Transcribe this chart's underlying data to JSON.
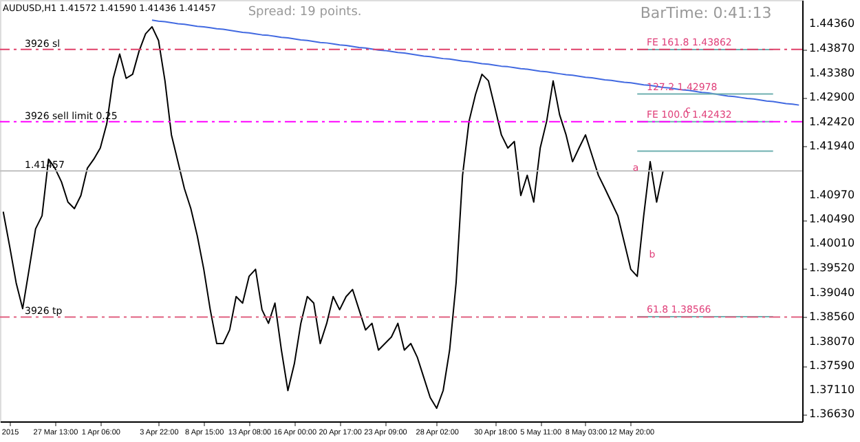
{
  "chart_data": {
    "type": "line",
    "title": "AUDUSD,H1  1.41572 1.41590 1.41436 1.41457",
    "categories": [
      null,
      "2015",
      null,
      null,
      null,
      null,
      null,
      null,
      "27 Mar 13:00",
      null,
      null,
      null,
      null,
      null,
      null,
      "1 Apr 06:00",
      null,
      null,
      null,
      null,
      null,
      null,
      null,
      null,
      "3 Apr 22:00",
      null,
      null,
      null,
      null,
      null,
      null,
      "8 Apr 15:00",
      null,
      null,
      null,
      null,
      null,
      null,
      "13 Apr 08:00",
      null,
      null,
      null,
      null,
      null,
      null,
      "16 Apr 00:00",
      null,
      null,
      null,
      null,
      null,
      null,
      "20 Apr 17:00",
      null,
      null,
      null,
      null,
      null,
      null,
      "23 Apr 09:00",
      null,
      null,
      null,
      null,
      null,
      null,
      null,
      "28 Apr 02:00",
      null,
      null,
      null,
      null,
      null,
      null,
      null,
      null,
      "30 Apr 18:00",
      null,
      null,
      null,
      null,
      null,
      null,
      "5 May 11:00",
      null,
      null,
      null,
      null,
      null,
      null,
      "8 May 03:00",
      null,
      null,
      null,
      null,
      null,
      null,
      "12 May 20:00",
      null,
      null,
      null,
      null,
      null,
      null,
      null,
      null,
      null,
      null,
      null,
      null,
      null,
      null,
      null,
      null,
      null,
      null,
      null,
      null,
      null,
      null,
      null,
      null,
      null,
      null
    ],
    "series": [
      {
        "color": "#000000",
        "values": [
          1.4065,
          1.3996,
          1.3924,
          1.3873,
          1.3951,
          1.4031,
          1.4057,
          1.4169,
          1.4151,
          1.4124,
          1.4084,
          1.4071,
          1.4097,
          1.4151,
          1.4169,
          1.4191,
          1.4239,
          1.4329,
          1.4377,
          1.4329,
          1.4337,
          1.4383,
          1.4417,
          1.4431,
          1.4404,
          1.4324,
          1.4217,
          1.4164,
          1.4111,
          1.4071,
          1.4017,
          1.3951,
          1.3871,
          1.3804,
          1.3804,
          1.3831,
          1.3897,
          1.3884,
          1.3937,
          1.3951,
          1.3871,
          1.3844,
          1.3884,
          1.3791,
          1.3711,
          1.3764,
          1.3844,
          1.3897,
          1.3884,
          1.3804,
          1.3844,
          1.3897,
          1.3871,
          1.3897,
          1.3911,
          1.3871,
          1.3831,
          1.3844,
          1.3791,
          1.3804,
          1.3817,
          1.3844,
          1.3791,
          1.3804,
          1.3777,
          1.3737,
          1.3697,
          1.3676,
          1.3711,
          1.3791,
          1.3924,
          1.4137,
          1.4244,
          1.4297,
          1.4337,
          1.4324,
          1.4271,
          1.4217,
          1.4191,
          1.4204,
          1.4097,
          1.4137,
          1.4084,
          1.4191,
          1.4244,
          1.4324,
          1.4257,
          1.4217,
          1.4164,
          1.4191,
          1.4217,
          1.4177,
          1.4137,
          1.4111,
          1.4084,
          1.4057,
          1.4004,
          1.3951,
          1.3937,
          1.4057,
          1.4164,
          1.4084,
          1.4146,
          null,
          null,
          null,
          null,
          null,
          null,
          null,
          null,
          null,
          null,
          null,
          null,
          null,
          null,
          null,
          null,
          null,
          null,
          null,
          null,
          null
        ]
      },
      {
        "type": "line",
        "color": "#4169e1",
        "values": [
          null,
          null,
          null,
          null,
          null,
          null,
          null,
          null,
          null,
          null,
          null,
          null,
          null,
          null,
          null,
          null,
          null,
          null,
          null,
          null,
          null,
          null,
          null,
          1.4444,
          1.4442,
          1.4441,
          1.4439,
          1.4437,
          1.4436,
          1.4434,
          1.4432,
          1.4431,
          1.4429,
          1.4427,
          1.4426,
          1.4424,
          1.4422,
          1.442,
          1.4419,
          1.4417,
          1.4415,
          1.4414,
          1.4412,
          1.441,
          1.4409,
          1.4407,
          1.4405,
          1.4404,
          1.4402,
          1.44,
          1.4399,
          1.4397,
          1.4395,
          1.4394,
          1.4392,
          1.439,
          1.4389,
          1.4387,
          1.4385,
          1.4384,
          1.4382,
          1.438,
          1.4379,
          1.4377,
          1.4375,
          1.4373,
          1.4372,
          1.437,
          1.4368,
          1.4367,
          1.4365,
          1.4363,
          1.4362,
          1.436,
          1.4358,
          1.4357,
          1.4355,
          1.4353,
          1.4352,
          1.435,
          1.4348,
          1.4347,
          1.4345,
          1.4343,
          1.4342,
          1.434,
          1.4338,
          1.4336,
          1.4335,
          1.4333,
          1.4331,
          1.433,
          1.4328,
          1.4326,
          1.4325,
          1.4323,
          1.4321,
          1.432,
          1.4318,
          1.4316,
          1.4315,
          1.4313,
          1.4311,
          1.431,
          1.4308,
          1.4306,
          1.4305,
          1.4303,
          1.4301,
          1.43,
          1.4298,
          1.4296,
          1.4294,
          1.4293,
          1.4291,
          1.4289,
          1.4288,
          1.4286,
          1.4284,
          1.4283,
          1.4281,
          1.4279,
          1.4278,
          1.4276
        ]
      },
      {
        "type": "line",
        "color": "#6fb0b0",
        "values": [
          null,
          null,
          null,
          null,
          null,
          null,
          null,
          null,
          null,
          null,
          null,
          null,
          null,
          null,
          null,
          null,
          null,
          null,
          null,
          null,
          null,
          null,
          null,
          null,
          null,
          null,
          null,
          null,
          null,
          null,
          null,
          null,
          null,
          null,
          null,
          null,
          null,
          null,
          null,
          null,
          null,
          null,
          null,
          null,
          null,
          null,
          null,
          null,
          null,
          null,
          null,
          null,
          null,
          null,
          null,
          null,
          null,
          null,
          null,
          null,
          null,
          null,
          null,
          null,
          null,
          null,
          null,
          null,
          null,
          null,
          null,
          null,
          null,
          null,
          null,
          null,
          null,
          null,
          null,
          null,
          null,
          null,
          null,
          null,
          null,
          null,
          null,
          null,
          null,
          null,
          null,
          null,
          null,
          null,
          null,
          null,
          null,
          null,
          1.4386,
          1.4386,
          1.4386,
          1.4386,
          1.4386,
          1.4386,
          1.4386,
          1.4386,
          1.4386,
          1.4386,
          1.4386,
          1.4386,
          1.4386,
          1.4386,
          1.4386,
          1.4386,
          1.4386,
          1.4386,
          1.4386,
          1.4386,
          1.4386,
          1.4386,
          null,
          null,
          null,
          null
        ]
      },
      {
        "type": "line",
        "color": "#6fb0b0",
        "values": [
          null,
          null,
          null,
          null,
          null,
          null,
          null,
          null,
          null,
          null,
          null,
          null,
          null,
          null,
          null,
          null,
          null,
          null,
          null,
          null,
          null,
          null,
          null,
          null,
          null,
          null,
          null,
          null,
          null,
          null,
          null,
          null,
          null,
          null,
          null,
          null,
          null,
          null,
          null,
          null,
          null,
          null,
          null,
          null,
          null,
          null,
          null,
          null,
          null,
          null,
          null,
          null,
          null,
          null,
          null,
          null,
          null,
          null,
          null,
          null,
          null,
          null,
          null,
          null,
          null,
          null,
          null,
          null,
          null,
          null,
          null,
          null,
          null,
          null,
          null,
          null,
          null,
          null,
          null,
          null,
          null,
          null,
          null,
          null,
          null,
          null,
          null,
          null,
          null,
          null,
          null,
          null,
          null,
          null,
          null,
          null,
          null,
          null,
          1.4298,
          1.4298,
          1.4298,
          1.4298,
          1.4298,
          1.4298,
          1.4298,
          1.4298,
          1.4298,
          1.4298,
          1.4298,
          1.4298,
          1.4298,
          1.4298,
          1.4298,
          1.4298,
          1.4298,
          1.4298,
          1.4298,
          1.4298,
          1.4298,
          1.4298,
          null,
          null,
          null,
          null
        ]
      },
      {
        "type": "line",
        "color": "#6fb0b0",
        "values": [
          null,
          null,
          null,
          null,
          null,
          null,
          null,
          null,
          null,
          null,
          null,
          null,
          null,
          null,
          null,
          null,
          null,
          null,
          null,
          null,
          null,
          null,
          null,
          null,
          null,
          null,
          null,
          null,
          null,
          null,
          null,
          null,
          null,
          null,
          null,
          null,
          null,
          null,
          null,
          null,
          null,
          null,
          null,
          null,
          null,
          null,
          null,
          null,
          null,
          null,
          null,
          null,
          null,
          null,
          null,
          null,
          null,
          null,
          null,
          null,
          null,
          null,
          null,
          null,
          null,
          null,
          null,
          null,
          null,
          null,
          null,
          null,
          null,
          null,
          null,
          null,
          null,
          null,
          null,
          null,
          null,
          null,
          null,
          null,
          null,
          null,
          null,
          null,
          null,
          null,
          null,
          null,
          null,
          null,
          null,
          null,
          null,
          null,
          1.4243,
          1.4243,
          1.4243,
          1.4243,
          1.4243,
          1.4243,
          1.4243,
          1.4243,
          1.4243,
          1.4243,
          1.4243,
          1.4243,
          1.4243,
          1.4243,
          1.4243,
          1.4243,
          1.4243,
          1.4243,
          1.4243,
          1.4243,
          1.4243,
          1.4243,
          null,
          null,
          null,
          null
        ]
      },
      {
        "type": "line",
        "color": "#6fb0b0",
        "values": [
          null,
          null,
          null,
          null,
          null,
          null,
          null,
          null,
          null,
          null,
          null,
          null,
          null,
          null,
          null,
          null,
          null,
          null,
          null,
          null,
          null,
          null,
          null,
          null,
          null,
          null,
          null,
          null,
          null,
          null,
          null,
          null,
          null,
          null,
          null,
          null,
          null,
          null,
          null,
          null,
          null,
          null,
          null,
          null,
          null,
          null,
          null,
          null,
          null,
          null,
          null,
          null,
          null,
          null,
          null,
          null,
          null,
          null,
          null,
          null,
          null,
          null,
          null,
          null,
          null,
          null,
          null,
          null,
          null,
          null,
          null,
          null,
          null,
          null,
          null,
          null,
          null,
          null,
          null,
          null,
          null,
          null,
          null,
          null,
          null,
          null,
          null,
          null,
          null,
          null,
          null,
          null,
          null,
          null,
          null,
          null,
          null,
          null,
          1.4185,
          1.4185,
          1.4185,
          1.4185,
          1.4185,
          1.4185,
          1.4185,
          1.4185,
          1.4185,
          1.4185,
          1.4185,
          1.4185,
          1.4185,
          1.4185,
          1.4185,
          1.4185,
          1.4185,
          1.4185,
          1.4185,
          1.4185,
          1.4185,
          1.4185,
          null,
          null,
          null,
          null
        ]
      },
      {
        "type": "line",
        "color": "#6fb0b0",
        "values": [
          null,
          null,
          null,
          null,
          null,
          null,
          null,
          null,
          null,
          null,
          null,
          null,
          null,
          null,
          null,
          null,
          null,
          null,
          null,
          null,
          null,
          null,
          null,
          null,
          null,
          null,
          null,
          null,
          null,
          null,
          null,
          null,
          null,
          null,
          null,
          null,
          null,
          null,
          null,
          null,
          null,
          null,
          null,
          null,
          null,
          null,
          null,
          null,
          null,
          null,
          null,
          null,
          null,
          null,
          null,
          null,
          null,
          null,
          null,
          null,
          null,
          null,
          null,
          null,
          null,
          null,
          null,
          null,
          null,
          null,
          null,
          null,
          null,
          null,
          null,
          null,
          null,
          null,
          null,
          null,
          null,
          null,
          null,
          null,
          null,
          null,
          null,
          null,
          null,
          null,
          null,
          null,
          null,
          null,
          null,
          null,
          null,
          null,
          1.3857,
          1.3857,
          1.3857,
          1.3857,
          1.3857,
          1.3857,
          1.3857,
          1.3857,
          1.3857,
          1.3857,
          1.3857,
          1.3857,
          1.3857,
          1.3857,
          1.3857,
          1.3857,
          1.3857,
          1.3857,
          1.3857,
          1.3857,
          1.3857,
          1.3857,
          null,
          null,
          null,
          null
        ]
      }
    ],
    "ylim": [
      1.365,
      1.4484
    ],
    "yticks": [
      {
        "value": 1.4436,
        "label": "1.44360"
      },
      {
        "value": 1.4387,
        "label": "1.43870"
      },
      {
        "value": 1.4338,
        "label": "1.43380"
      },
      {
        "value": 1.429,
        "label": "1.42900"
      },
      {
        "value": 1.4242,
        "label": "1.42420"
      },
      {
        "value": 1.4194,
        "label": "1.41940"
      },
      {
        "value": 1.4097,
        "label": "1.40970"
      },
      {
        "value": 1.4049,
        "label": "1.40490"
      },
      {
        "value": 1.4001,
        "label": "1.40010"
      },
      {
        "value": 1.3952,
        "label": "1.39520"
      },
      {
        "value": 1.3904,
        "label": "1.39040"
      },
      {
        "value": 1.3856,
        "label": "1.38560"
      },
      {
        "value": 1.3807,
        "label": "1.38070"
      },
      {
        "value": 1.3759,
        "label": "1.37590"
      },
      {
        "value": 1.3711,
        "label": "1.37110"
      },
      {
        "value": 1.3663,
        "label": "1.36630"
      }
    ],
    "ref_lines": [
      {
        "axis": "y",
        "value": 1.43862,
        "label": "3926 sl",
        "color": "#e0406a",
        "line_style": "dashdot"
      },
      {
        "axis": "y",
        "value": 1.42432,
        "label": "3926 sell limit 0.25",
        "color": "#ff00ff",
        "line_style": "dashdot"
      },
      {
        "axis": "y",
        "value": 1.38566,
        "label": "3926 tp",
        "color": "#e06080",
        "line_style": "dashdot"
      },
      {
        "axis": "y",
        "value": 1.41457,
        "label": "1.41457",
        "color": "#c0c0c0",
        "line_style": "solid"
      }
    ],
    "annotations": [
      "Spread: 19 points.",
      "BarTime:   0:41:13",
      {
        "text": "FE 161.8  1.43862",
        "y": 1.43862
      },
      {
        "text": "127.2  1.42978",
        "y": 1.42978
      },
      {
        "text": "FE 100.0  1.42432",
        "y": 1.42432
      },
      {
        "text": "61.8  1.38566",
        "y": 1.38566
      },
      "a",
      "b",
      "c"
    ],
    "grid": false
  }
}
